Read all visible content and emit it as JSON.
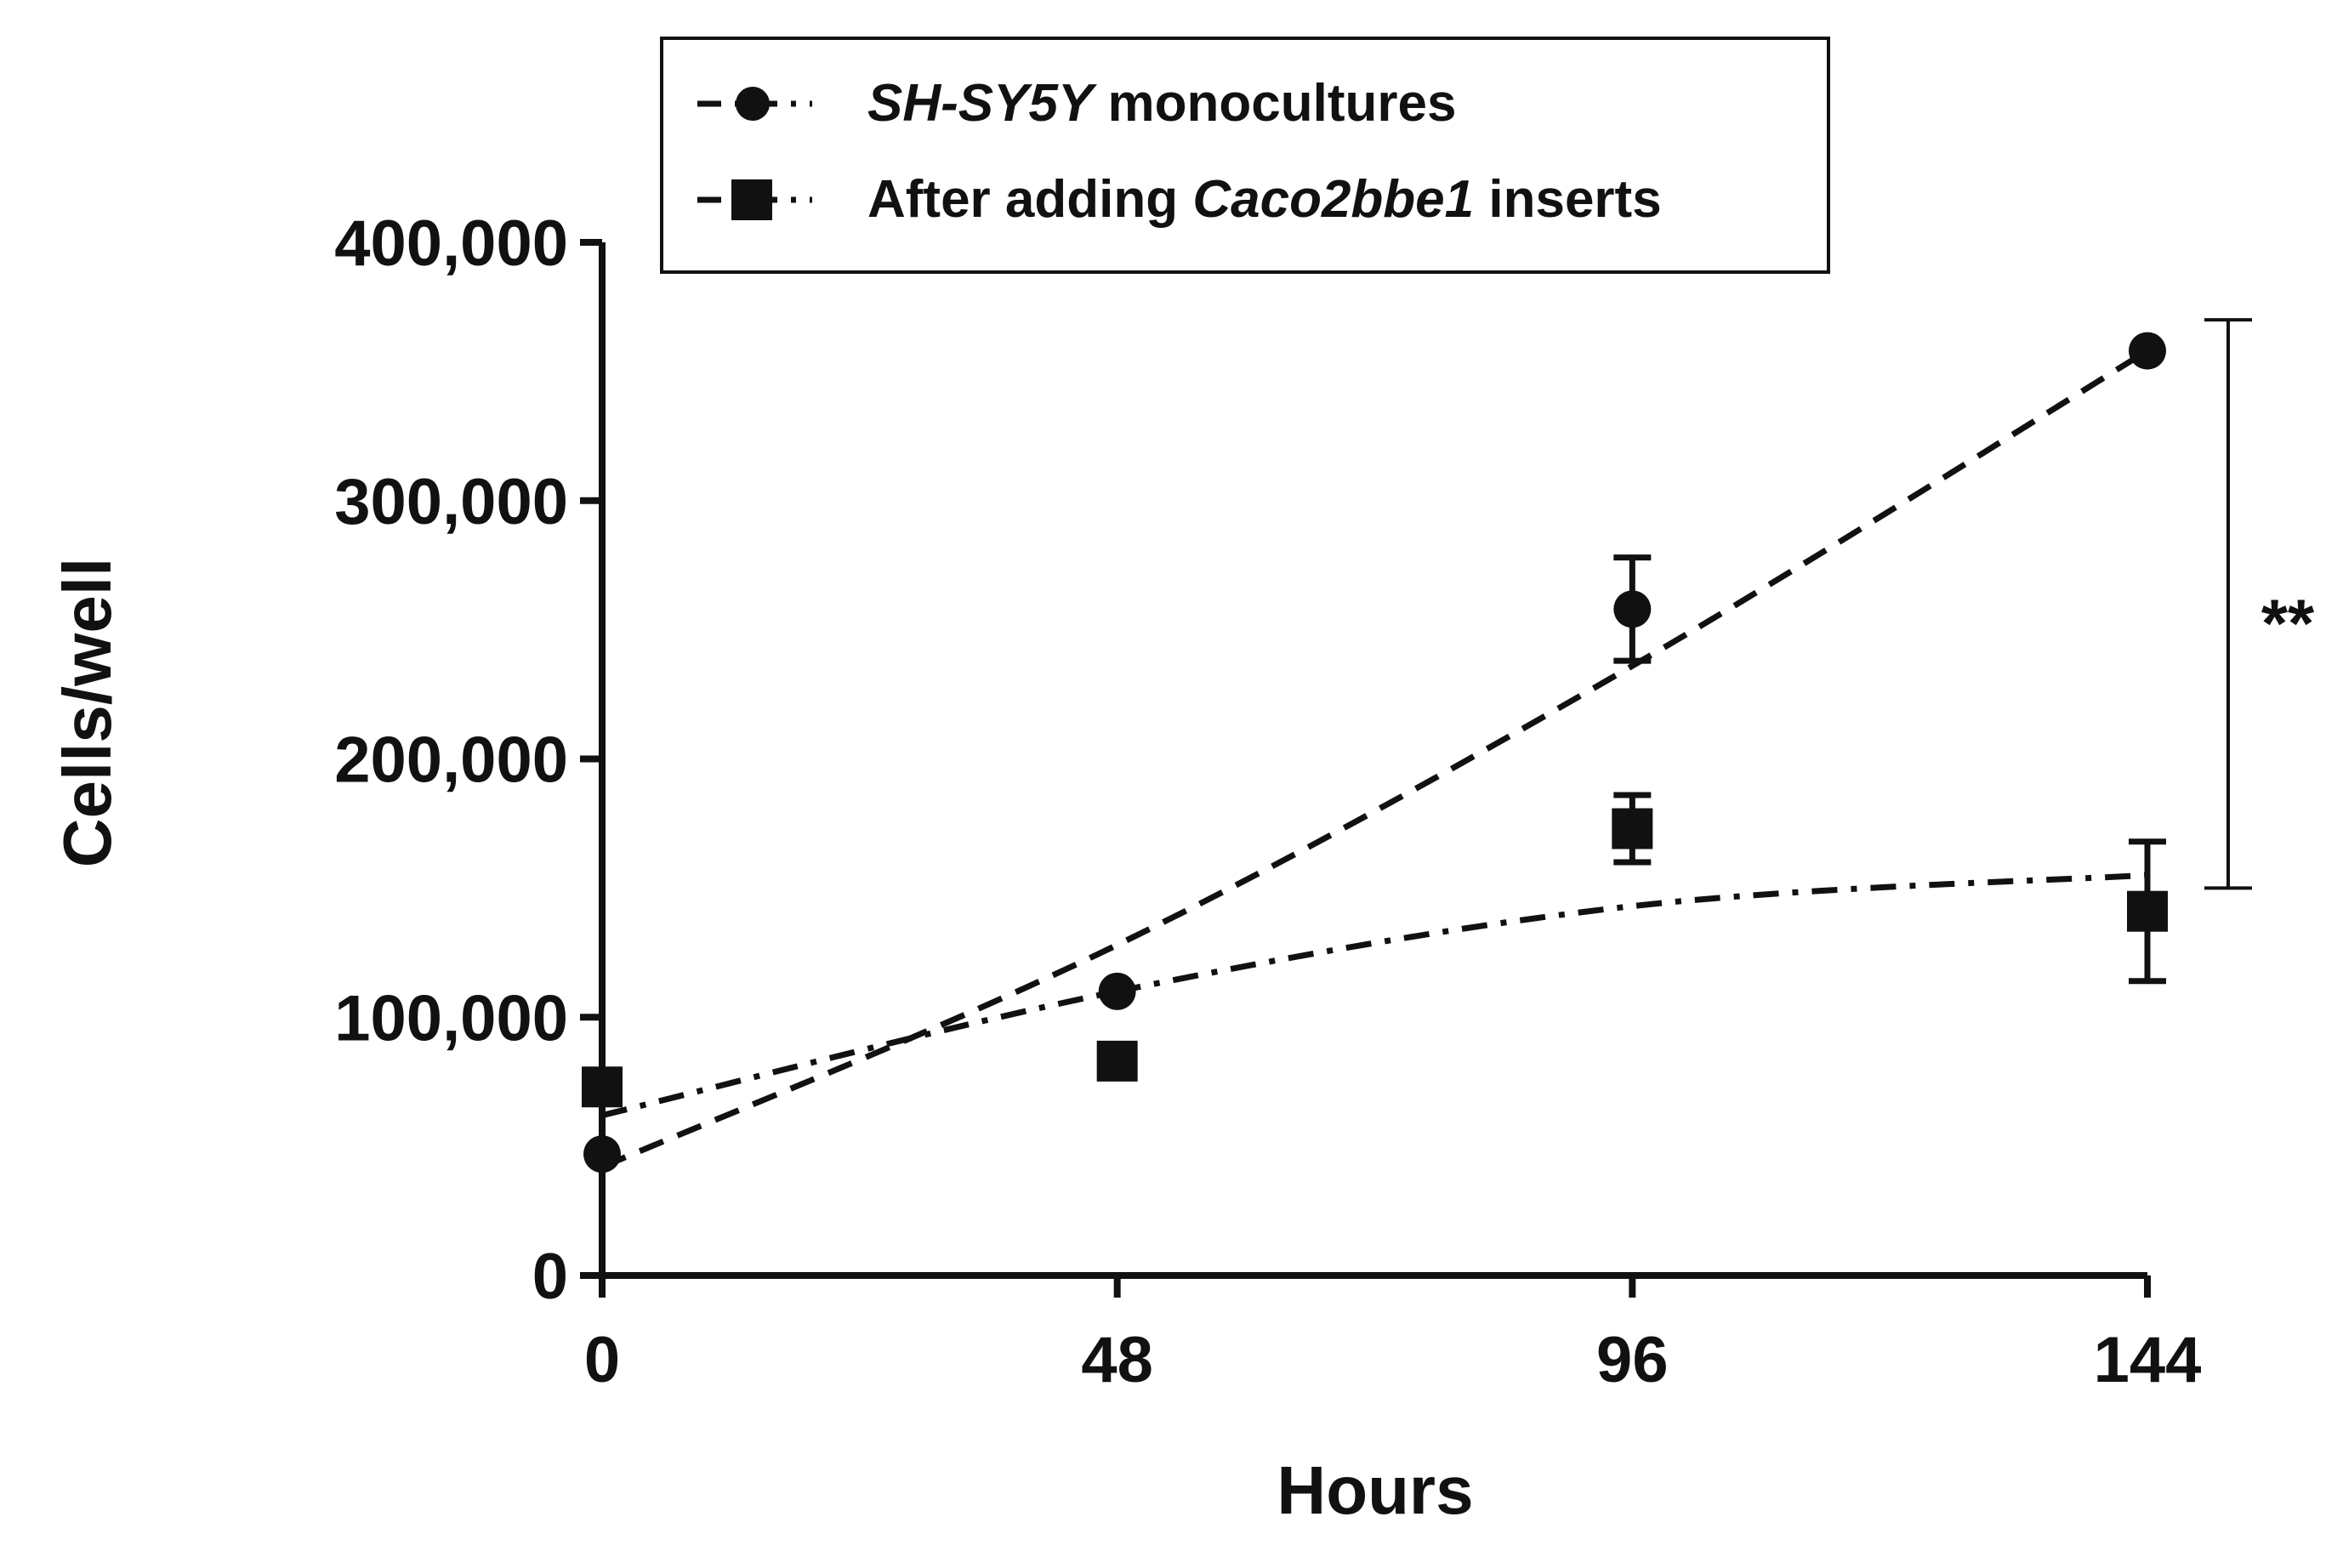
{
  "chart_data": {
    "type": "line",
    "title": "",
    "xlabel": "Hours",
    "ylabel": "Cells/well",
    "x": [
      0,
      48,
      96,
      144
    ],
    "xticks": [
      "0",
      "48",
      "96",
      "144"
    ],
    "yticks": [
      "0",
      "100,000",
      "200,000",
      "300,000",
      "400,000"
    ],
    "ytick_values": [
      0,
      100000,
      200000,
      300000,
      400000
    ],
    "xlim": [
      0,
      144
    ],
    "ylim": [
      0,
      400000
    ],
    "series": [
      {
        "name_italic": "SH-SY5Y",
        "name_rest": " monocultures",
        "marker": "circle",
        "line_style": "dashed",
        "values": [
          47000,
          110000,
          258000,
          358000
        ],
        "errors": [
          0,
          0,
          20000,
          0
        ],
        "trend": [
          42000,
          128000,
          236000,
          358000
        ]
      },
      {
        "name_prefix": "After adding ",
        "name_italic": "Caco2bbe1",
        "name_suffix": " inserts",
        "marker": "square",
        "line_style": "dash-dot",
        "values": [
          73000,
          83000,
          173000,
          141000
        ],
        "errors": [
          0,
          0,
          13000,
          27000
        ],
        "trend": [
          62000,
          110000,
          143000,
          155000
        ]
      }
    ],
    "significance": {
      "label": "**",
      "y_range": [
        150000,
        370000
      ],
      "at_x": 144
    },
    "grid": false,
    "legend": "top-center",
    "colors": {
      "ink": "#111111",
      "background": "#ffffff"
    }
  }
}
